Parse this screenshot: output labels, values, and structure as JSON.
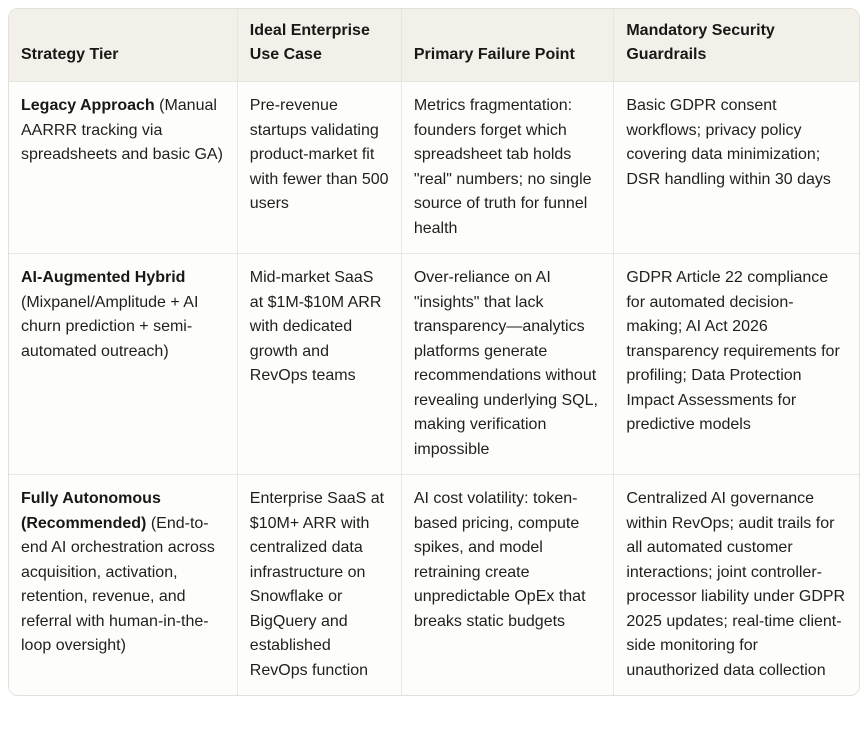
{
  "header": {
    "columns": [
      "Strategy Tier",
      "Ideal Enterprise Use Case",
      "Primary Failure Point",
      "Mandatory Security Guardrails"
    ]
  },
  "rows": [
    {
      "tier_title": "Legacy Approach",
      "tier_detail": "(Manual AARRR tracking via spreadsheets and basic GA)",
      "use_case": "Pre-revenue startups validating product-market fit with fewer than 500 users",
      "failure_point": "Metrics fragmentation: founders forget which spreadsheet tab holds \"real\" numbers; no single source of truth for funnel health",
      "guardrails": "Basic GDPR consent workflows; privacy policy covering data minimization; DSR handling within 30 days"
    },
    {
      "tier_title": "AI-Augmented Hybrid",
      "tier_detail": "(Mixpanel/Amplitude + AI churn prediction + semi-automated outreach)",
      "use_case": "Mid-market SaaS at $1M-$10M ARR with dedicated growth and RevOps teams",
      "failure_point": "Over-reliance on AI \"insights\" that lack transparency—analytics platforms generate recommendations without revealing underlying SQL, making verification impossible",
      "guardrails": "GDPR Article 22 compliance for automated decision-making; AI Act 2026 transparency requirements for profiling; Data Protection Impact Assessments for predictive models"
    },
    {
      "tier_title": "Fully Autonomous (Recommended)",
      "tier_detail": "(End-to-end AI orchestration across acquisition, activation, retention, revenue, and referral with human-in-the-loop oversight)",
      "use_case": "Enterprise SaaS at $10M+ ARR with centralized data infrastructure on Snowflake or BigQuery and established RevOps function",
      "failure_point": "AI cost volatility: token-based pricing, compute spikes, and model retraining create unpredictable OpEx that breaks static budgets",
      "guardrails": "Centralized AI governance within RevOps; audit trails for all automated customer interactions; joint controller-processor liability under GDPR 2025 updates; real-time client-side monitoring for unauthorized data collection"
    }
  ],
  "colors": {
    "header_bg": "#f3f0ea",
    "body_bg": "#fdfdfb",
    "border": "#e3e0da",
    "cell_divider": "#eae7e1",
    "text": "#201f1d"
  }
}
